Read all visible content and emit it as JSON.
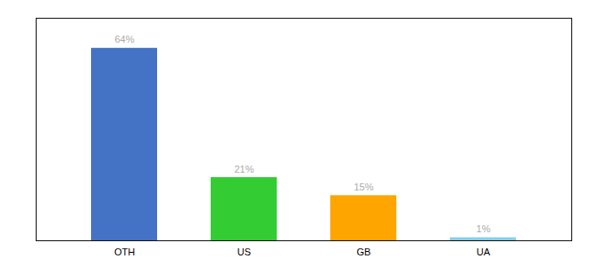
{
  "chart_data": {
    "type": "bar",
    "categories": [
      "OTH",
      "US",
      "GB",
      "UA"
    ],
    "values": [
      64,
      21,
      15,
      1
    ],
    "value_labels": [
      "64%",
      "21%",
      "15%",
      "1%"
    ],
    "colors": [
      "#4472C4",
      "#33CC33",
      "#FFA500",
      "#87CEEB"
    ],
    "ylim": [
      0,
      74
    ],
    "data_labels": true,
    "tick_labels": "x",
    "grid": false
  }
}
